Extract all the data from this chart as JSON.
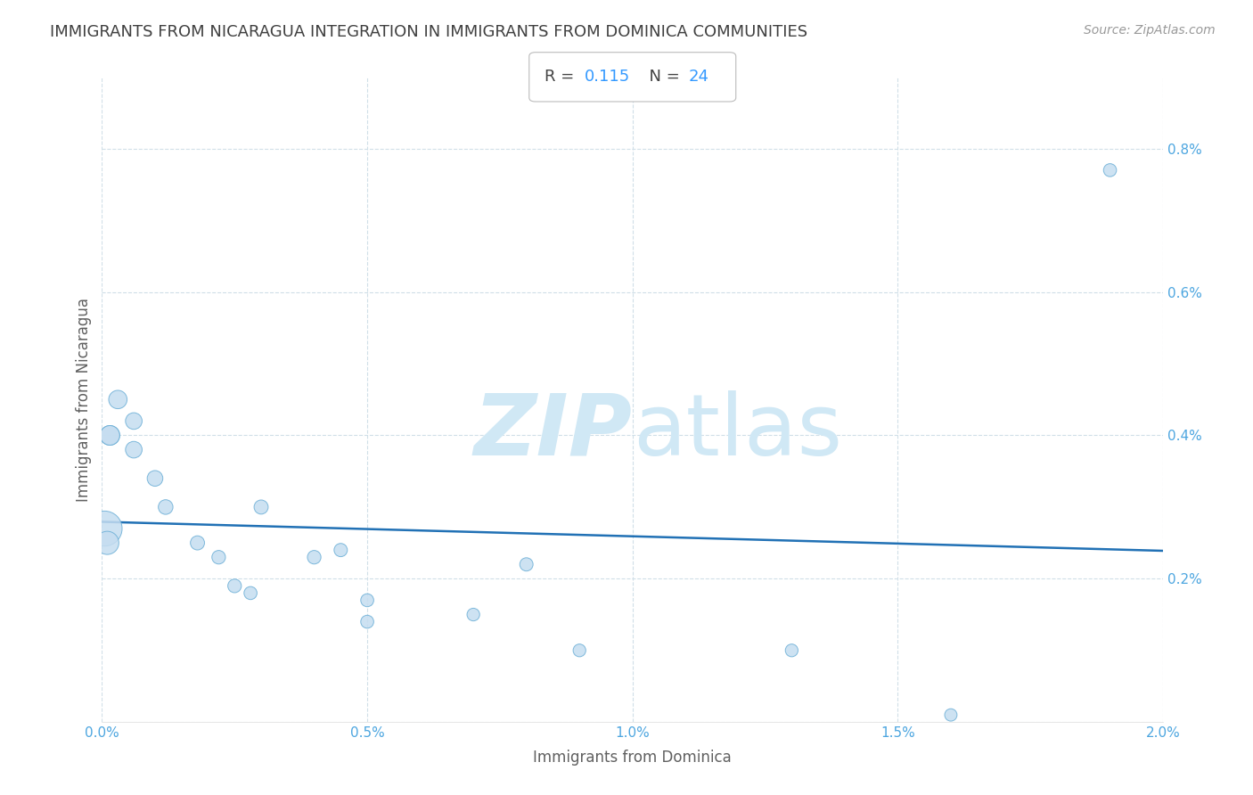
{
  "title": "IMMIGRANTS FROM NICARAGUA INTEGRATION IN IMMIGRANTS FROM DOMINICA COMMUNITIES",
  "source": "Source: ZipAtlas.com",
  "xlabel": "Immigrants from Dominica",
  "ylabel": "Immigrants from Nicaragua",
  "R_label": "R = 0.115",
  "N_label": "N = 24",
  "x_data": [
    5e-05,
    0.0001,
    0.00015,
    0.00015,
    0.0003,
    0.0006,
    0.0006,
    0.001,
    0.0012,
    0.0018,
    0.0022,
    0.0025,
    0.0028,
    0.003,
    0.004,
    0.0045,
    0.005,
    0.005,
    0.007,
    0.008,
    0.009,
    0.013,
    0.016,
    0.019
  ],
  "y_data": [
    0.0027,
    0.0025,
    0.004,
    0.004,
    0.0045,
    0.0042,
    0.0038,
    0.0034,
    0.003,
    0.0025,
    0.0023,
    0.0019,
    0.0018,
    0.003,
    0.0023,
    0.0024,
    0.0014,
    0.0017,
    0.0015,
    0.0022,
    0.001,
    0.001,
    0.0001,
    0.0077
  ],
  "point_sizes": [
    800,
    350,
    250,
    250,
    220,
    180,
    180,
    160,
    140,
    130,
    120,
    120,
    110,
    130,
    120,
    115,
    110,
    110,
    105,
    115,
    105,
    105,
    100,
    110
  ],
  "point_color": "#c5ddf0",
  "point_edge_color": "#6aaed6",
  "line_color": "#2171b5",
  "watermark_color": "#d0e8f5",
  "title_color": "#404040",
  "axis_label_color": "#606060",
  "tick_color": "#4da6e0",
  "source_color": "#999999",
  "annotation_r_color": "#444444",
  "annotation_n_color": "#3399ff",
  "xlim": [
    0,
    0.02
  ],
  "ylim": [
    0,
    0.009
  ],
  "x_ticks": [
    0.0,
    0.005,
    0.01,
    0.015,
    0.02
  ],
  "x_tick_labels": [
    "0.0%",
    "0.5%",
    "1.0%",
    "1.5%",
    "2.0%"
  ],
  "y_ticks": [
    0.0,
    0.002,
    0.004,
    0.006,
    0.008
  ],
  "y_tick_labels": [
    "",
    "0.2%",
    "0.4%",
    "0.6%",
    "0.8%"
  ],
  "grid_color": "#d0dfe8",
  "background_color": "#ffffff",
  "figsize": [
    14.06,
    8.92
  ],
  "dpi": 100
}
